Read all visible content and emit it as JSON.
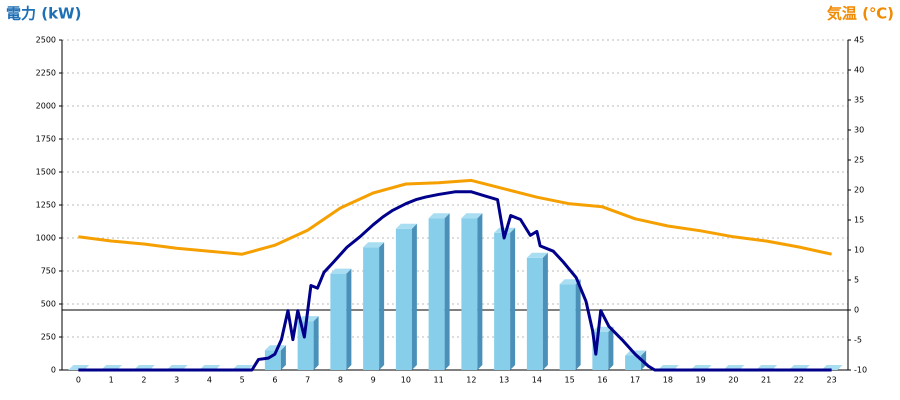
{
  "chart_data": {
    "type": "bar",
    "title": "電力 (kW)",
    "y2_title": "気温 (℃)",
    "categories": [
      "0",
      "1",
      "2",
      "3",
      "4",
      "5",
      "6",
      "7",
      "8",
      "9",
      "10",
      "11",
      "12",
      "13",
      "14",
      "15",
      "16",
      "17",
      "18",
      "19",
      "20",
      "21",
      "22",
      "23"
    ],
    "series": [
      {
        "type": "bar",
        "color": "#87ceeb",
        "values": [
          0,
          0,
          0,
          0,
          0,
          0,
          150,
          370,
          730,
          930,
          1070,
          1150,
          1150,
          1040,
          850,
          650,
          290,
          110,
          0,
          0,
          0,
          0,
          0,
          0
        ]
      },
      {
        "type": "line",
        "color": "#f5a000",
        "axis": "y2",
        "values": [
          12.2,
          11.5,
          11,
          10.3,
          9.8,
          9.3,
          10.8,
          13.3,
          17,
          19.5,
          21,
          21.2,
          21.6,
          20.2,
          18.8,
          17.7,
          17.2,
          15.2,
          14,
          13.2,
          12.2,
          11.5,
          10.5,
          9.3
        ]
      },
      {
        "type": "line",
        "color": "#00008b",
        "x": [
          0,
          5.3,
          5.5,
          5.8,
          6.0,
          6.2,
          6.4,
          6.55,
          6.7,
          6.9,
          7.1,
          7.3,
          7.5,
          7.8,
          8.2,
          8.6,
          9,
          9.3,
          9.6,
          10,
          10.3,
          10.6,
          11,
          11.5,
          12,
          12.4,
          12.8,
          13.0,
          13.2,
          13.5,
          13.8,
          14.0,
          14.1,
          14.5,
          14.8,
          15.2,
          15.5,
          15.7,
          15.8,
          15.95,
          16.2,
          16.6,
          17,
          17.4,
          17.6,
          23
        ],
        "values": [
          0,
          0,
          80,
          90,
          120,
          230,
          450,
          230,
          450,
          250,
          640,
          620,
          740,
          820,
          930,
          1010,
          1100,
          1160,
          1210,
          1260,
          1290,
          1310,
          1330,
          1350,
          1350,
          1320,
          1290,
          1000,
          1170,
          1140,
          1020,
          1050,
          940,
          900,
          820,
          700,
          520,
          300,
          120,
          450,
          330,
          230,
          120,
          30,
          0,
          0
        ]
      }
    ],
    "ylim": [
      0,
      2500
    ],
    "yticks": [
      0,
      250,
      500,
      750,
      1000,
      1250,
      1500,
      1750,
      2000,
      2250,
      2500
    ],
    "y2lim": [
      -10,
      45
    ],
    "y2ticks": [
      -10,
      -5,
      0,
      5,
      10,
      15,
      20,
      25,
      30,
      35,
      40,
      45
    ],
    "y2_reference": 0,
    "grid": true
  }
}
